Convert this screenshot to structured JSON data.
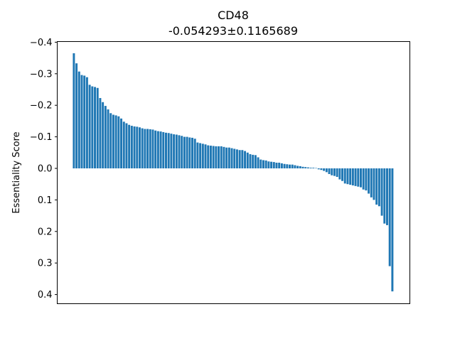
{
  "chart_data": {
    "type": "bar",
    "title": "CD48",
    "subtitle": "-0.054293±0.1165689",
    "xlabel": "",
    "ylabel": "Essentiality Score",
    "ylim": [
      0.42,
      -0.4
    ],
    "y_inverted": true,
    "yticks": [
      -0.4,
      -0.3,
      -0.2,
      -0.1,
      0.0,
      0.1,
      0.2,
      0.3,
      0.4
    ],
    "ytick_labels": [
      "−0.4",
      "−0.3",
      "−0.2",
      "−0.1",
      "0.0",
      "0.1",
      "0.2",
      "0.3",
      "0.4"
    ],
    "grid": false,
    "color": "#1f77b4",
    "values": [
      -0.365,
      -0.333,
      -0.307,
      -0.296,
      -0.294,
      -0.289,
      -0.265,
      -0.26,
      -0.258,
      -0.255,
      -0.223,
      -0.21,
      -0.198,
      -0.187,
      -0.175,
      -0.17,
      -0.168,
      -0.165,
      -0.158,
      -0.148,
      -0.143,
      -0.138,
      -0.135,
      -0.133,
      -0.132,
      -0.13,
      -0.127,
      -0.125,
      -0.125,
      -0.124,
      -0.123,
      -0.12,
      -0.118,
      -0.117,
      -0.115,
      -0.113,
      -0.112,
      -0.11,
      -0.108,
      -0.107,
      -0.105,
      -0.103,
      -0.1,
      -0.1,
      -0.098,
      -0.097,
      -0.094,
      -0.082,
      -0.08,
      -0.078,
      -0.076,
      -0.073,
      -0.072,
      -0.071,
      -0.07,
      -0.07,
      -0.07,
      -0.068,
      -0.066,
      -0.066,
      -0.064,
      -0.062,
      -0.06,
      -0.058,
      -0.058,
      -0.055,
      -0.05,
      -0.045,
      -0.043,
      -0.042,
      -0.035,
      -0.028,
      -0.026,
      -0.025,
      -0.022,
      -0.021,
      -0.02,
      -0.018,
      -0.018,
      -0.016,
      -0.014,
      -0.013,
      -0.012,
      -0.012,
      -0.01,
      -0.008,
      -0.007,
      -0.005,
      -0.004,
      -0.003,
      -0.002,
      -0.002,
      -0.001,
      0.003,
      0.005,
      0.008,
      0.012,
      0.018,
      0.022,
      0.024,
      0.027,
      0.035,
      0.04,
      0.048,
      0.05,
      0.052,
      0.054,
      0.056,
      0.058,
      0.06,
      0.067,
      0.07,
      0.08,
      0.092,
      0.1,
      0.115,
      0.12,
      0.15,
      0.175,
      0.18,
      0.31,
      0.39
    ]
  }
}
